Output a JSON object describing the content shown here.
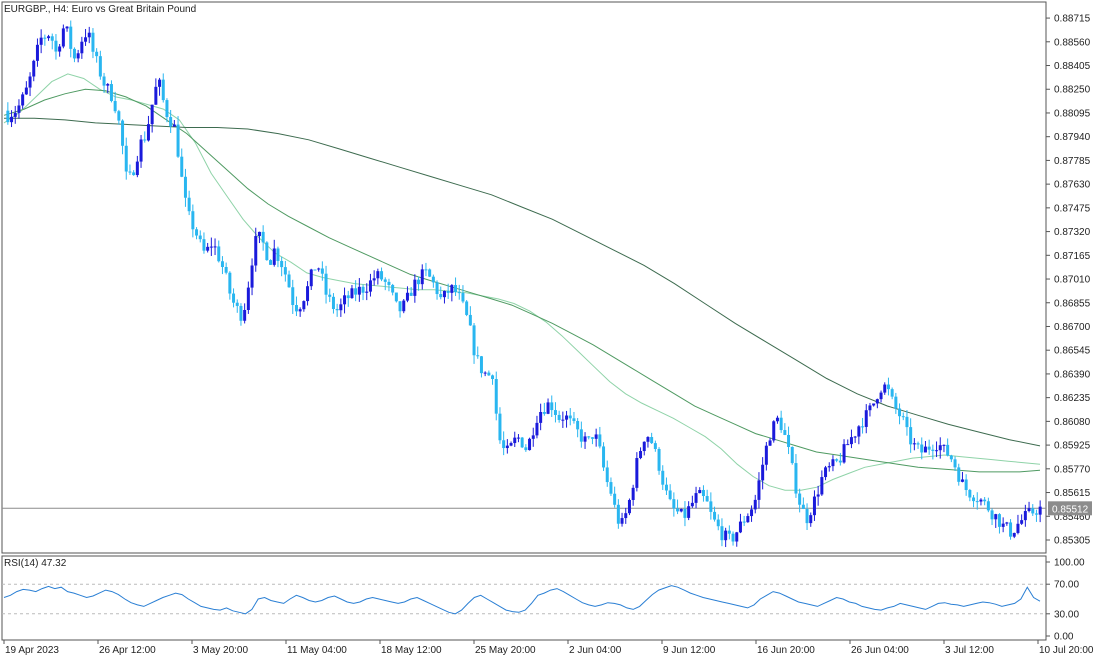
{
  "colors": {
    "background": "#ffffff",
    "bull_candle": "#1a1adb",
    "bear_candle": "#29b6f0",
    "ma_fast": "#8fd3a8",
    "ma_mid": "#4f9a62",
    "ma_slow": "#3d6b4f",
    "rsi_line": "#2a7fd4",
    "axis": "#555555",
    "grid_dash": "#bbbbbb",
    "price_line": "#8c8c8c",
    "price_tag_bg": "#8c8c8c",
    "price_tag_text": "#ffffff"
  },
  "chart_data": {
    "type": "candlestick",
    "title": "EURGBP., H4:  Euro vs Great Britain Pound",
    "symbol": "EURGBP.",
    "timeframe": "H4",
    "description": "Euro vs Great Britain Pound",
    "y_ticks": [
      "0.88715",
      "0.88560",
      "0.88405",
      "0.88250",
      "0.88095",
      "0.87940",
      "0.87785",
      "0.87630",
      "0.87475",
      "0.87320",
      "0.87165",
      "0.87010",
      "0.86855",
      "0.86700",
      "0.86545",
      "0.86390",
      "0.86235",
      "0.86080",
      "0.85925",
      "0.85770",
      "0.85615",
      "0.85460",
      "0.85305"
    ],
    "ylim": [
      0.8522,
      0.8882
    ],
    "current_price": "0.85512",
    "x_labels": [
      "19 Apr 2023",
      "26 Apr 12:00",
      "3 May 20:00",
      "11 May 04:00",
      "18 May 12:00",
      "25 May 20:00",
      "2 Jun 04:00",
      "9 Jun 12:00",
      "16 Jun 20:00",
      "26 Jun 04:00",
      "3 Jul 12:00",
      "10 Jul 20:00"
    ],
    "bar_count": 280,
    "close_path": [
      0.8808,
      0.881,
      0.8812,
      0.8818,
      0.8825,
      0.8835,
      0.8848,
      0.8858,
      0.886,
      0.8862,
      0.8848,
      0.8858,
      0.8868,
      0.8855,
      0.8845,
      0.8852,
      0.8862,
      0.886,
      0.8848,
      0.884,
      0.883,
      0.8825,
      0.882,
      0.881,
      0.879,
      0.8765,
      0.8768,
      0.878,
      0.879,
      0.8795,
      0.881,
      0.8825,
      0.8828,
      0.8812,
      0.8806,
      0.88,
      0.878,
      0.8755,
      0.8742,
      0.8735,
      0.8728,
      0.8718,
      0.872,
      0.8725,
      0.8718,
      0.871,
      0.87,
      0.8688,
      0.8682,
      0.8678,
      0.8685,
      0.8708,
      0.8725,
      0.8728,
      0.8722,
      0.8712,
      0.872,
      0.8715,
      0.8708,
      0.8698,
      0.8685,
      0.8682,
      0.8688,
      0.8695,
      0.8705,
      0.8712,
      0.8702,
      0.869,
      0.8685,
      0.868,
      0.8683,
      0.8688,
      0.869,
      0.8692,
      0.8694,
      0.8695,
      0.8698,
      0.8702,
      0.8703,
      0.87,
      0.8695,
      0.8688,
      0.868,
      0.8682,
      0.8688,
      0.8695,
      0.87,
      0.8703,
      0.8705,
      0.87,
      0.8695,
      0.8688,
      0.869,
      0.8695,
      0.8693,
      0.8688,
      0.868,
      0.867,
      0.8655,
      0.8645,
      0.864,
      0.8638,
      0.864,
      0.86,
      0.859,
      0.8588,
      0.8592,
      0.8598,
      0.8595,
      0.859,
      0.8598,
      0.861,
      0.8615,
      0.8618,
      0.862,
      0.8615,
      0.861,
      0.8612,
      0.8608,
      0.8604,
      0.86,
      0.8596,
      0.8594,
      0.86,
      0.8595,
      0.858,
      0.8568,
      0.856,
      0.8545,
      0.854,
      0.8548,
      0.856,
      0.8578,
      0.859,
      0.86,
      0.8598,
      0.8588,
      0.8578,
      0.8565,
      0.8555,
      0.855,
      0.8548,
      0.8545,
      0.855,
      0.8555,
      0.856,
      0.8558,
      0.8554,
      0.8545,
      0.854,
      0.8535,
      0.8532,
      0.853,
      0.8535,
      0.854,
      0.8545,
      0.855,
      0.8555,
      0.857,
      0.8585,
      0.8598,
      0.8605,
      0.861,
      0.8602,
      0.859,
      0.8575,
      0.856,
      0.855,
      0.8545,
      0.8552,
      0.856,
      0.857,
      0.8575,
      0.8578,
      0.858,
      0.8584,
      0.859,
      0.8596,
      0.86,
      0.8606,
      0.861,
      0.8614,
      0.862,
      0.8628,
      0.8632,
      0.8628,
      0.862,
      0.8614,
      0.861,
      0.86,
      0.8594,
      0.859,
      0.8588,
      0.859,
      0.8592,
      0.8594,
      0.8592,
      0.8588,
      0.8586,
      0.858,
      0.8572,
      0.8565,
      0.8562,
      0.856,
      0.8558,
      0.8555,
      0.8552,
      0.8548,
      0.8545,
      0.854,
      0.8538,
      0.8535,
      0.854,
      0.8543,
      0.8546,
      0.8548,
      0.855,
      0.8551
    ],
    "ma_fast_path": [
      0.8803,
      0.881,
      0.882,
      0.883,
      0.8835,
      0.8832,
      0.8825,
      0.882,
      0.8818,
      0.8815,
      0.8812,
      0.8805,
      0.879,
      0.877,
      0.8755,
      0.874,
      0.8728,
      0.8718,
      0.8712,
      0.8705,
      0.8702,
      0.87,
      0.8698,
      0.8697,
      0.8696,
      0.8695,
      0.8694,
      0.8694,
      0.8693,
      0.8692,
      0.869,
      0.8688,
      0.8685,
      0.868,
      0.8673,
      0.8664,
      0.8654,
      0.8644,
      0.8634,
      0.8626,
      0.862,
      0.8615,
      0.861,
      0.8604,
      0.8598,
      0.859,
      0.858,
      0.8572,
      0.8566,
      0.8563,
      0.8563,
      0.8565,
      0.857,
      0.8574,
      0.8578,
      0.858,
      0.8582,
      0.8584,
      0.8585,
      0.8586,
      0.8585,
      0.8584,
      0.8583,
      0.8582,
      0.8581,
      0.858
    ],
    "ma_mid_path": [
      0.8808,
      0.8812,
      0.8818,
      0.8822,
      0.8825,
      0.8824,
      0.882,
      0.8814,
      0.8805,
      0.8796,
      0.8784,
      0.8772,
      0.876,
      0.875,
      0.8742,
      0.8735,
      0.8728,
      0.8722,
      0.8716,
      0.871,
      0.8704,
      0.87,
      0.8696,
      0.8692,
      0.8688,
      0.8684,
      0.8678,
      0.8672,
      0.8665,
      0.8658,
      0.865,
      0.8642,
      0.8634,
      0.8626,
      0.8618,
      0.8612,
      0.8606,
      0.86,
      0.8596,
      0.8592,
      0.8588,
      0.8586,
      0.8584,
      0.8582,
      0.858,
      0.8578,
      0.8577,
      0.8576,
      0.8575,
      0.8575,
      0.8575,
      0.8576
    ],
    "ma_slow_path": [
      0.8806,
      0.8806,
      0.8805,
      0.8803,
      0.8802,
      0.8801,
      0.88,
      0.88,
      0.8799,
      0.8796,
      0.8792,
      0.8786,
      0.878,
      0.8774,
      0.8768,
      0.8762,
      0.8756,
      0.8748,
      0.874,
      0.873,
      0.872,
      0.871,
      0.8698,
      0.8685,
      0.8672,
      0.866,
      0.8648,
      0.8636,
      0.8626,
      0.8618,
      0.8612,
      0.8606,
      0.8601,
      0.8596,
      0.8592
    ],
    "indicator": {
      "label": "RSI(14) 47.32",
      "y_ticks": [
        "100.00",
        "70.00",
        "30.00",
        "0.00"
      ],
      "levels": [
        70,
        30
      ],
      "ylim": [
        0,
        100
      ],
      "path": [
        52,
        55,
        60,
        63,
        62,
        60,
        64,
        67,
        64,
        66,
        60,
        58,
        55,
        52,
        54,
        58,
        62,
        60,
        56,
        50,
        45,
        42,
        40,
        44,
        48,
        52,
        55,
        58,
        56,
        50,
        45,
        40,
        38,
        36,
        35,
        38,
        34,
        32,
        30,
        36,
        50,
        52,
        48,
        46,
        44,
        50,
        55,
        52,
        48,
        46,
        48,
        52,
        54,
        50,
        46,
        44,
        46,
        50,
        52,
        50,
        48,
        46,
        44,
        46,
        50,
        52,
        48,
        44,
        40,
        36,
        32,
        30,
        35,
        44,
        52,
        55,
        50,
        45,
        40,
        35,
        33,
        32,
        35,
        44,
        55,
        58,
        62,
        64,
        60,
        55,
        50,
        45,
        42,
        40,
        42,
        45,
        44,
        42,
        38,
        36,
        40,
        48,
        56,
        62,
        65,
        68,
        66,
        62,
        58,
        55,
        52,
        50,
        48,
        46,
        44,
        42,
        40,
        38,
        42,
        50,
        55,
        60,
        58,
        54,
        50,
        46,
        44,
        42,
        40,
        44,
        48,
        52,
        50,
        46,
        44,
        40,
        38,
        36,
        35,
        38,
        40,
        44,
        42,
        40,
        38,
        36,
        40,
        44,
        45,
        43,
        42,
        40,
        42,
        44,
        46,
        45,
        43,
        40,
        42,
        44,
        50,
        66,
        52,
        47
      ]
    }
  }
}
